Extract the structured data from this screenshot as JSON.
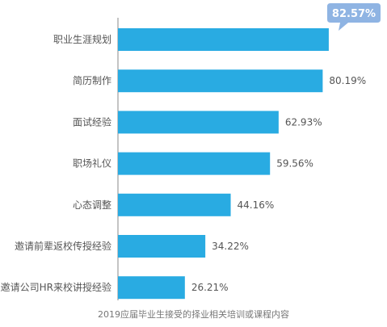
{
  "chart_data": {
    "type": "bar",
    "orientation": "horizontal",
    "categories": [
      "职业生涯规划",
      "简历制作",
      "面试经验",
      "职场礼仪",
      "心态调整",
      "邀请前辈返校传授经验",
      "邀请公司HR来校讲授经验"
    ],
    "values": [
      82.57,
      80.19,
      62.93,
      59.56,
      44.16,
      34.22,
      26.21
    ],
    "value_labels": [
      "82.57%",
      "80.19%",
      "62.93%",
      "59.56%",
      "44.16%",
      "34.22%",
      "26.21%"
    ],
    "xlim": [
      0,
      100
    ],
    "title": "",
    "caption": "2019应届毕业生接受的择业相关培训或课程内容",
    "grid": false,
    "highlight_index": 0,
    "colors": {
      "bar": "#29abe2",
      "callout": "#8fb4e3",
      "axis": "#888888"
    }
  }
}
